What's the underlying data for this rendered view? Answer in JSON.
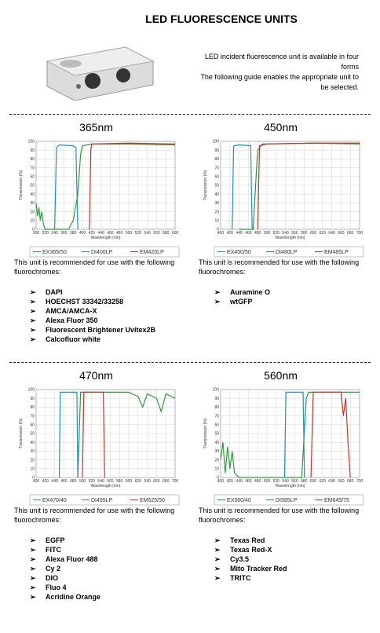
{
  "header": {
    "title": "LED FLUORESCENCE UNITS",
    "intro": [
      "LED incident fluorescence unit is available in four forms",
      "The following guide enables the appropriate unit to be selected."
    ]
  },
  "units": [
    {
      "heading": "365nm",
      "chart_data": {
        "type": "line",
        "xlabel": "Wavelength (nm)",
        "ylabel": "Transmission (%)",
        "xlim": [
          300,
          600
        ],
        "xticks": [
          300,
          320,
          340,
          360,
          380,
          400,
          420,
          440,
          460,
          480,
          500,
          520,
          540,
          560,
          580,
          600
        ],
        "ylim": [
          0,
          100
        ],
        "yticks": [
          0,
          10,
          20,
          30,
          40,
          50,
          60,
          70,
          80,
          90,
          100
        ],
        "grid": true,
        "series": [
          {
            "name": "EX365/50",
            "color": "#1f8fd0",
            "x": [
              340,
              344,
              350,
              380,
              386,
              390
            ],
            "values": [
              0,
              93,
              96,
              95,
              93,
              0
            ]
          },
          {
            "name": "DI400LP",
            "color": "#2e9a3e",
            "x": [
              300,
              303,
              306,
              309,
              312,
              316,
              320,
              370,
              380,
              390,
              396,
              400,
              420,
              500,
              600
            ],
            "values": [
              30,
              15,
              25,
              10,
              20,
              5,
              0,
              0,
              10,
              40,
              85,
              95,
              97,
              97,
              96
            ]
          },
          {
            "name": "EM420LP",
            "color": "#c8352b",
            "x": [
              415,
              418,
              420,
              500,
              600
            ],
            "values": [
              0,
              90,
              97,
              98,
              97
            ]
          }
        ]
      },
      "text": "This unit is recommended for use with the following fluorochromes:",
      "fluorochromes": [
        "DAPI",
        "HOECHST 33342/33258",
        "AMCA/AMCA-X",
        "Alexa Fluor 350",
        "Fluorescent Brightener Uvitex2B",
        "Calcofluor white"
      ]
    },
    {
      "heading": "450nm",
      "chart_data": {
        "type": "line",
        "xlabel": "Wavelength (nm)",
        "ylabel": "Transmission (%)",
        "xlim": [
          400,
          700
        ],
        "xticks": [
          400,
          420,
          440,
          460,
          480,
          500,
          520,
          540,
          560,
          580,
          600,
          620,
          640,
          660,
          680,
          700
        ],
        "ylim": [
          0,
          100
        ],
        "yticks": [
          0,
          10,
          20,
          30,
          40,
          50,
          60,
          70,
          80,
          90,
          100
        ],
        "grid": true,
        "series": [
          {
            "name": "EX450/50",
            "color": "#1f8fd0",
            "x": [
              425,
              428,
              440,
              465,
              468
            ],
            "values": [
              0,
              95,
              96,
              95,
              0
            ]
          },
          {
            "name": "DI480LP",
            "color": "#2e9a3e",
            "x": [
              440,
              470,
              480,
              490,
              600,
              700
            ],
            "values": [
              0,
              0,
              90,
              97,
              98,
              97
            ]
          },
          {
            "name": "EM485LP",
            "color": "#c8352b",
            "x": [
              480,
              484,
              500,
              600,
              700
            ],
            "values": [
              0,
              95,
              97,
              98,
              98
            ]
          }
        ]
      },
      "text": "This unit is recommended for use with the following fluorochromes:",
      "fluorochromes": [
        "Auramine O",
        "wtGFP"
      ]
    },
    {
      "heading": "470nm",
      "chart_data": {
        "type": "line",
        "xlabel": "Wavelength (nm)",
        "ylabel": "Transmission (%)",
        "xlim": [
          400,
          700
        ],
        "xticks": [
          400,
          420,
          440,
          460,
          480,
          500,
          520,
          540,
          560,
          580,
          600,
          620,
          640,
          660,
          680,
          700
        ],
        "ylim": [
          0,
          100
        ],
        "yticks": [
          0,
          10,
          20,
          30,
          40,
          50,
          60,
          70,
          80,
          90,
          100
        ],
        "grid": true,
        "series": [
          {
            "name": "EX470/40",
            "color": "#1f8fd0",
            "x": [
              450,
              452,
              488,
              490
            ],
            "values": [
              0,
              97,
              97,
              0
            ]
          },
          {
            "name": "DI495LP",
            "color": "#2e9a3e",
            "x": [
              490,
              496,
              600,
              620,
              630,
              640,
              660,
              670,
              680,
              700
            ],
            "values": [
              0,
              97,
              97,
              92,
              80,
              95,
              90,
              75,
              95,
              90
            ]
          },
          {
            "name": "EM525/50",
            "color": "#c8352b",
            "x": [
              500,
              503,
              545,
              548
            ],
            "values": [
              0,
              97,
              97,
              0
            ]
          }
        ]
      },
      "text": "This unit is recommended for use with the following fluorochromes:",
      "fluorochromes": [
        "EGFP",
        "FITC",
        "Alexa Fluor 488",
        "Cy 2",
        "DIO",
        "Fluo 4",
        "Acridine Orange"
      ]
    },
    {
      "heading": "560nm",
      "chart_data": {
        "type": "line",
        "xlabel": "Wavelength (nm)",
        "ylabel": "Transmission (%)",
        "xlim": [
          400,
          700
        ],
        "xticks": [
          400,
          420,
          440,
          460,
          480,
          500,
          520,
          540,
          560,
          580,
          600,
          620,
          640,
          660,
          680,
          700
        ],
        "ylim": [
          0,
          100
        ],
        "yticks": [
          0,
          10,
          20,
          30,
          40,
          50,
          60,
          70,
          80,
          90,
          100
        ],
        "grid": true,
        "series": [
          {
            "name": "EX560/40",
            "color": "#1f8fd0",
            "x": [
              538,
              541,
              578,
              581
            ],
            "values": [
              0,
              97,
              97,
              0
            ]
          },
          {
            "name": "DI585LP",
            "color": "#2e9a3e",
            "x": [
              400,
              405,
              410,
              415,
              420,
              425,
              430,
              440,
              575,
              585,
              590,
              700
            ],
            "values": [
              20,
              40,
              5,
              35,
              10,
              30,
              5,
              0,
              0,
              90,
              97,
              97
            ]
          },
          {
            "name": "EM645/75",
            "color": "#c8352b",
            "x": [
              595,
              600,
              660,
              665,
              670,
              675,
              680
            ],
            "values": [
              0,
              97,
              97,
              70,
              90,
              40,
              0
            ]
          }
        ]
      },
      "text": "This unit is recommended for use with the following fluorochromes:",
      "fluorochromes": [
        "Texas Red",
        "Texas Red-X",
        "Cy3.5",
        "Mito Tracker Red",
        "TRITC"
      ]
    }
  ]
}
